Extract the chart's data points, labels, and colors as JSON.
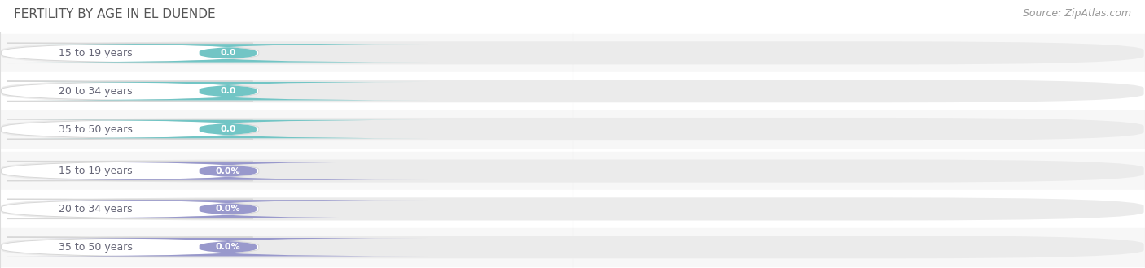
{
  "title": "FERTILITY BY AGE IN EL DUENDE",
  "source": "Source: ZipAtlas.com",
  "top_group": {
    "labels": [
      "15 to 19 years",
      "20 to 34 years",
      "35 to 50 years"
    ],
    "values": [
      0.0,
      0.0,
      0.0
    ],
    "bar_color": "#72c5c5",
    "value_suffix": ""
  },
  "bottom_group": {
    "labels": [
      "15 to 19 years",
      "20 to 34 years",
      "35 to 50 years"
    ],
    "values": [
      0.0,
      0.0,
      0.0
    ],
    "bar_color": "#9999cc",
    "value_suffix": "%"
  },
  "background_color": "#ffffff",
  "row_bg_odd": "#f7f7f7",
  "row_bg_even": "#ffffff",
  "track_color": "#ebebeb",
  "label_pill_bg": "#ffffff",
  "label_pill_border": "#d8d8d8",
  "label_text_color": "#666677",
  "tick_text_color": "#999999",
  "grid_color": "#dddddd",
  "title_color": "#555555",
  "source_color": "#999999",
  "title_fontsize": 11,
  "source_fontsize": 9,
  "label_fontsize": 9,
  "value_fontsize": 8,
  "tick_fontsize": 8.5
}
